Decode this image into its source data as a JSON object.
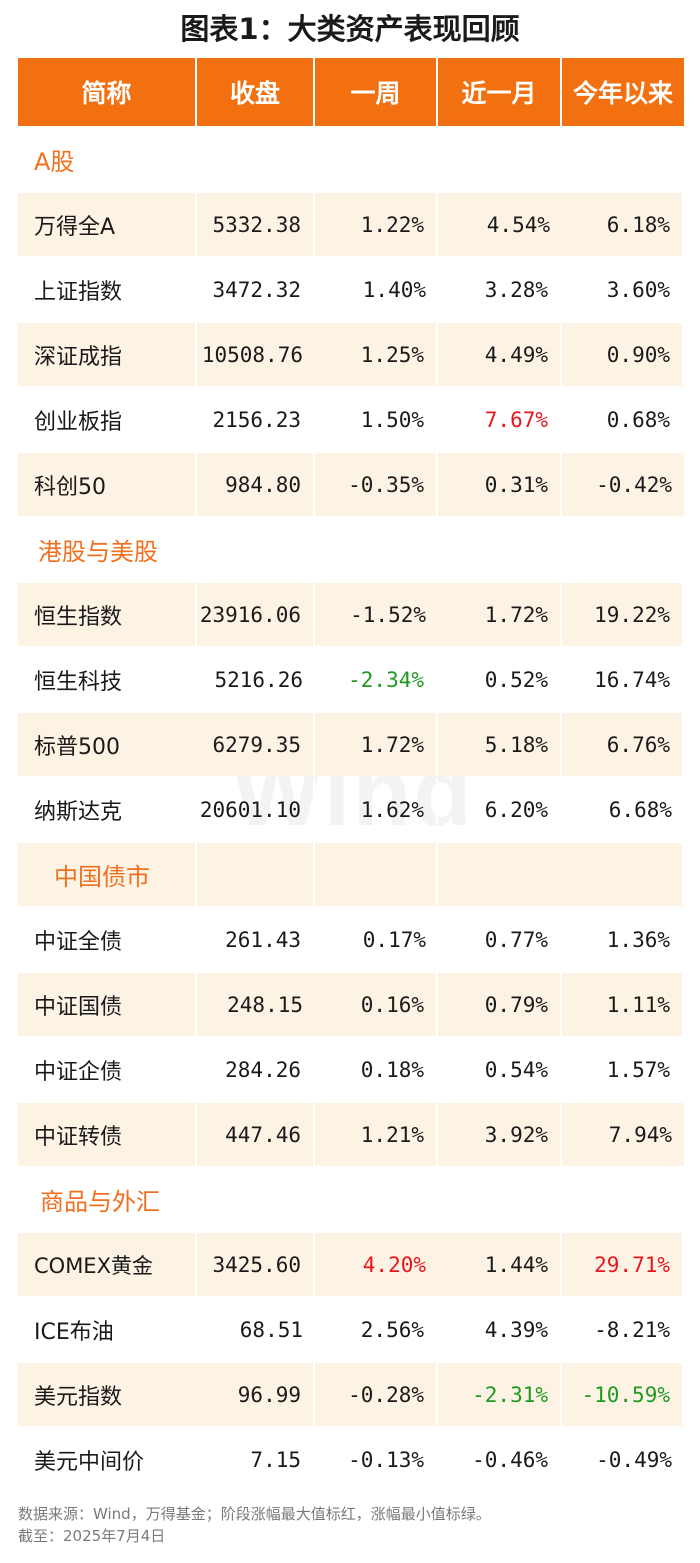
{
  "title": "图表1：大类资产表现回顾",
  "header": [
    "简称",
    "收盘",
    "一周",
    "近一月",
    "今年以来"
  ],
  "sections": [
    {
      "label": "A股",
      "rows": [
        {
          "name": "万得全A",
          "close": "5332.38",
          "w1": "1.22%",
          "m1": "4.54%",
          "ytd": "6.18%"
        },
        {
          "name": "上证指数",
          "close": "3472.32",
          "w1": "1.40%",
          "m1": "3.28%",
          "ytd": "3.60%"
        },
        {
          "name": "深证成指",
          "close": "10508.76",
          "w1": "1.25%",
          "m1": "4.49%",
          "ytd": "0.90%"
        },
        {
          "name": "创业板指",
          "close": "2156.23",
          "w1": "1.50%",
          "m1": "7.67%",
          "ytd": "0.68%"
        },
        {
          "name": "科创50",
          "close": "984.80",
          "w1": "-0.35%",
          "m1": "0.31%",
          "ytd": "-0.42%"
        }
      ]
    },
    {
      "label": "港股与美股",
      "rows": [
        {
          "name": "恒生指数",
          "close": "23916.06",
          "w1": "-1.52%",
          "m1": "1.72%",
          "ytd": "19.22%"
        },
        {
          "name": "恒生科技",
          "close": "5216.26",
          "w1": "-2.34%",
          "m1": "0.52%",
          "ytd": "16.74%"
        },
        {
          "name": "标普500",
          "close": "6279.35",
          "w1": "1.72%",
          "m1": "5.18%",
          "ytd": "6.76%"
        },
        {
          "name": "纳斯达克",
          "close": "20601.10",
          "w1": "1.62%",
          "m1": "6.20%",
          "ytd": "6.68%"
        }
      ]
    },
    {
      "label": "中国债市",
      "rows": [
        {
          "name": "中证全债",
          "close": "261.43",
          "w1": "0.17%",
          "m1": "0.77%",
          "ytd": "1.36%"
        },
        {
          "name": "中证国债",
          "close": "248.15",
          "w1": "0.16%",
          "m1": "0.79%",
          "ytd": "1.11%"
        },
        {
          "name": "中证企债",
          "close": "284.26",
          "w1": "0.18%",
          "m1": "0.54%",
          "ytd": "1.57%"
        },
        {
          "name": "中证转债",
          "close": "447.46",
          "w1": "1.21%",
          "m1": "3.92%",
          "ytd": "7.94%"
        }
      ]
    },
    {
      "label": "商品与外汇",
      "rows": [
        {
          "name": "COMEX黄金",
          "close": "3425.60",
          "w1": "4.20%",
          "m1": "1.44%",
          "ytd": "29.71%"
        },
        {
          "name": "ICE布油",
          "close": "68.51",
          "w1": "2.56%",
          "m1": "4.39%",
          "ytd": "-8.21%"
        },
        {
          "name": "美元指数",
          "close": "96.99",
          "w1": "-0.28%",
          "m1": "-2.31%",
          "ytd": "-10.59%"
        },
        {
          "name": "美元中间价",
          "close": "7.15",
          "w1": "-0.13%",
          "m1": "-0.46%",
          "ytd": "-0.49%"
        }
      ]
    }
  ],
  "footer": {
    "source": "数据来源：Wind，万得基金；阶段涨幅最大值标红，涨幅最小值标绿。",
    "date": "截至：2025年7月4日"
  },
  "watermark": "Wind",
  "colors": {
    "header_bg": "#F27010",
    "row_shade": "#FCF3E4",
    "section_text": "#F07020",
    "max_red": "#E8161C",
    "min_green": "#1E9A21"
  }
}
